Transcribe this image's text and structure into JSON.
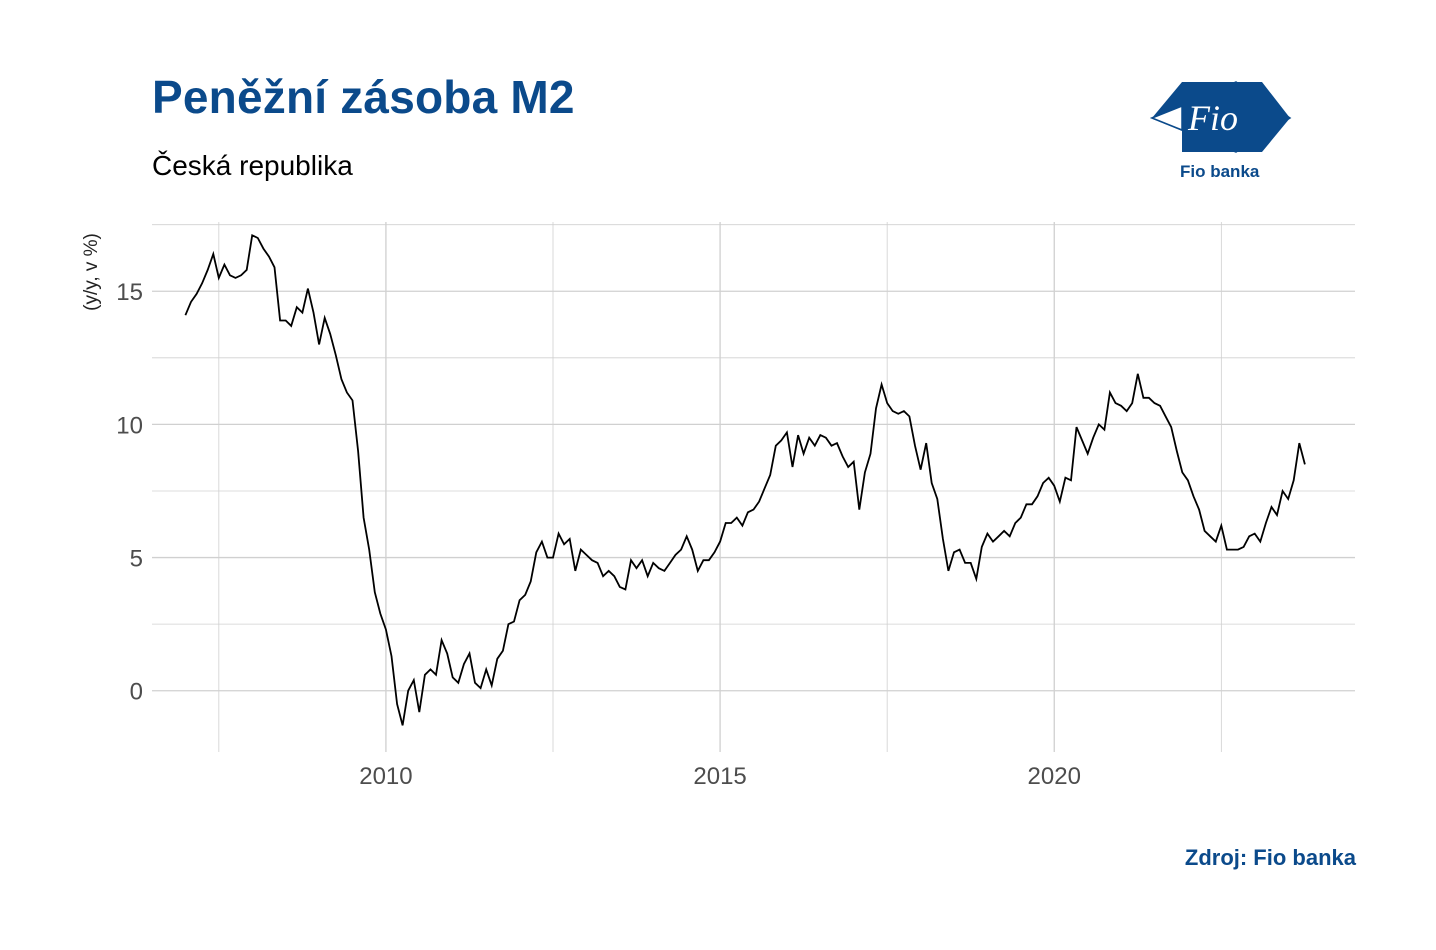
{
  "header": {
    "title": "Peněžní zásoba M2",
    "subtitle": "Česká republika"
  },
  "logo": {
    "icon": "fio-logo-icon",
    "text": "Fio banka",
    "wordmark": "Fio"
  },
  "footer": {
    "source": "Zdroj: Fio banka"
  },
  "colors": {
    "brand": "#0b4a8b",
    "line": "#000000",
    "grid": "#d0d0d0"
  },
  "chart_data": {
    "type": "line",
    "title": "Peněžní zásoba M2",
    "subtitle": "Česká republika",
    "ylabel": "(y/y, v %)",
    "xlabel": "",
    "xlim": [
      2006.5,
      2024.5
    ],
    "ylim": [
      -2.3,
      17.6
    ],
    "x_ticks": [
      2010,
      2015,
      2020
    ],
    "y_ticks": [
      0,
      5,
      10,
      15
    ],
    "grid": true,
    "legend": "none",
    "series": [
      {
        "x_start": 2007.0,
        "x_step": 0.0833333,
        "values": [
          14.1,
          14.6,
          14.9,
          15.3,
          15.8,
          16.4,
          15.5,
          16.0,
          15.6,
          15.5,
          15.6,
          15.8,
          17.1,
          17.0,
          16.6,
          16.3,
          15.9,
          13.9,
          13.9,
          13.7,
          14.4,
          14.2,
          15.1,
          14.2,
          13.0,
          14.0,
          13.4,
          12.6,
          11.7,
          11.2,
          10.9,
          9.0,
          6.5,
          5.3,
          3.7,
          2.9,
          2.3,
          1.3,
          -0.5,
          -1.3,
          0.0,
          0.4,
          -0.8,
          0.6,
          0.8,
          0.6,
          1.9,
          1.4,
          0.5,
          0.3,
          1.0,
          1.4,
          0.3,
          0.1,
          0.8,
          0.2,
          1.2,
          1.5,
          2.5,
          2.6,
          3.4,
          3.6,
          4.1,
          5.2,
          5.6,
          5.0,
          5.0,
          5.9,
          5.5,
          5.7,
          4.5,
          5.3,
          5.1,
          4.9,
          4.8,
          4.3,
          4.5,
          4.3,
          3.9,
          3.8,
          4.9,
          4.6,
          4.9,
          4.3,
          4.8,
          4.6,
          4.5,
          4.8,
          5.1,
          5.3,
          5.8,
          5.3,
          4.5,
          4.9,
          4.9,
          5.2,
          5.6,
          6.3,
          6.3,
          6.5,
          6.2,
          6.7,
          6.8,
          7.1,
          7.6,
          8.1,
          9.2,
          9.4,
          9.7,
          8.4,
          9.6,
          8.9,
          9.5,
          9.2,
          9.6,
          9.5,
          9.2,
          9.3,
          8.8,
          8.4,
          8.6,
          6.8,
          8.2,
          8.9,
          10.6,
          11.5,
          10.8,
          10.5,
          10.4,
          10.5,
          10.3,
          9.2,
          8.3,
          9.3,
          7.8,
          7.2,
          5.7,
          4.5,
          5.2,
          5.3,
          4.8,
          4.8,
          4.2,
          5.4,
          5.9,
          5.6,
          5.8,
          6.0,
          5.8,
          6.3,
          6.5,
          7.0,
          7.0,
          7.3,
          7.8,
          8.0,
          7.7,
          7.1,
          8.0,
          7.9,
          9.9,
          9.4,
          8.9,
          9.5,
          10.0,
          9.8,
          11.2,
          10.8,
          10.7,
          10.5,
          10.8,
          11.9,
          11.0,
          11.0,
          10.8,
          10.7,
          10.3,
          9.9,
          9.0,
          8.2,
          7.9,
          7.3,
          6.8,
          6.0,
          5.8,
          5.6,
          6.2,
          5.3,
          5.3,
          5.3,
          5.4,
          5.8,
          5.9,
          5.6,
          6.3,
          6.9,
          6.6,
          7.5,
          7.2,
          7.9,
          9.3,
          8.5
        ]
      }
    ]
  }
}
